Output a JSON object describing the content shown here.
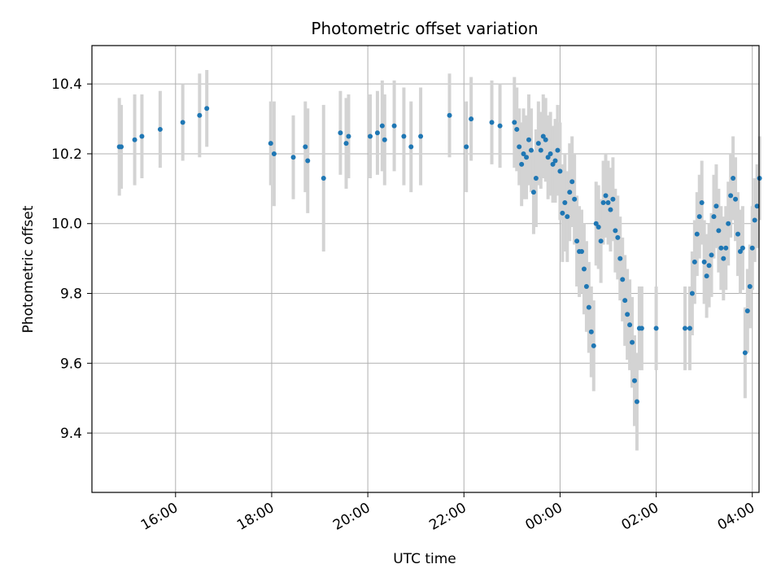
{
  "chart_data": {
    "type": "scatter",
    "title": "Photometric offset variation",
    "xlabel": "UTC time",
    "ylabel": "Photometric offset",
    "x_unit": "hours since 00:00 (negative = previous day)",
    "xlim": [
      -9.74,
      4.14
    ],
    "ylim": [
      9.23,
      10.51
    ],
    "x_ticks": [
      -8,
      -6,
      -4,
      -2,
      0,
      2,
      4
    ],
    "x_tick_labels": [
      "16:00",
      "18:00",
      "20:00",
      "22:00",
      "00:00",
      "02:00",
      "04:00"
    ],
    "y_ticks": [
      9.4,
      9.6,
      9.8,
      10.0,
      10.2,
      10.4
    ],
    "y_tick_labels": [
      "9.4",
      "9.6",
      "9.8",
      "10.0",
      "10.2",
      "10.4"
    ],
    "grid": true,
    "point_color": "#1f77b4",
    "errorbar_color": "#d3d3d3",
    "points": [
      [
        -9.17,
        10.22,
        0.14
      ],
      [
        -9.13,
        10.22,
        0.12
      ],
      [
        -8.85,
        10.24,
        0.13
      ],
      [
        -8.7,
        10.25,
        0.12
      ],
      [
        -8.32,
        10.27,
        0.11
      ],
      [
        -7.85,
        10.29,
        0.11
      ],
      [
        -7.5,
        10.31,
        0.12
      ],
      [
        -7.35,
        10.33,
        0.11
      ],
      [
        -6.02,
        10.23,
        0.12
      ],
      [
        -5.95,
        10.2,
        0.15
      ],
      [
        -5.55,
        10.19,
        0.12
      ],
      [
        -5.3,
        10.22,
        0.13
      ],
      [
        -5.25,
        10.18,
        0.15
      ],
      [
        -4.92,
        10.13,
        0.21
      ],
      [
        -4.57,
        10.26,
        0.12
      ],
      [
        -4.45,
        10.23,
        0.13
      ],
      [
        -4.4,
        10.25,
        0.12
      ],
      [
        -3.95,
        10.25,
        0.12
      ],
      [
        -3.8,
        10.26,
        0.12
      ],
      [
        -3.7,
        10.28,
        0.13
      ],
      [
        -3.65,
        10.24,
        0.13
      ],
      [
        -3.45,
        10.28,
        0.13
      ],
      [
        -3.25,
        10.25,
        0.14
      ],
      [
        -3.1,
        10.22,
        0.13
      ],
      [
        -2.9,
        10.25,
        0.14
      ],
      [
        -2.3,
        10.31,
        0.12
      ],
      [
        -1.95,
        10.22,
        0.13
      ],
      [
        -1.85,
        10.3,
        0.12
      ],
      [
        -1.42,
        10.29,
        0.12
      ],
      [
        -1.25,
        10.28,
        0.12
      ],
      [
        -0.95,
        10.29,
        0.13
      ],
      [
        -0.9,
        10.27,
        0.12
      ],
      [
        -0.85,
        10.22,
        0.11
      ],
      [
        -0.8,
        10.17,
        0.12
      ],
      [
        -0.76,
        10.2,
        0.13
      ],
      [
        -0.7,
        10.19,
        0.12
      ],
      [
        -0.65,
        10.24,
        0.13
      ],
      [
        -0.6,
        10.21,
        0.12
      ],
      [
        -0.55,
        10.09,
        0.12
      ],
      [
        -0.5,
        10.13,
        0.14
      ],
      [
        -0.45,
        10.23,
        0.12
      ],
      [
        -0.4,
        10.21,
        0.11
      ],
      [
        -0.35,
        10.25,
        0.12
      ],
      [
        -0.3,
        10.24,
        0.12
      ],
      [
        -0.25,
        10.19,
        0.12
      ],
      [
        -0.2,
        10.2,
        0.12
      ],
      [
        -0.15,
        10.17,
        0.11
      ],
      [
        -0.1,
        10.18,
        0.12
      ],
      [
        -0.05,
        10.21,
        0.13
      ],
      [
        0.0,
        10.15,
        0.14
      ],
      [
        0.05,
        10.03,
        0.14
      ],
      [
        0.1,
        10.06,
        0.14
      ],
      [
        0.15,
        10.02,
        0.13
      ],
      [
        0.2,
        10.09,
        0.14
      ],
      [
        0.25,
        10.12,
        0.13
      ],
      [
        0.3,
        10.07,
        0.13
      ],
      [
        0.35,
        9.95,
        0.13
      ],
      [
        0.4,
        9.92,
        0.13
      ],
      [
        0.45,
        9.92,
        0.12
      ],
      [
        0.5,
        9.87,
        0.13
      ],
      [
        0.55,
        9.82,
        0.13
      ],
      [
        0.6,
        9.76,
        0.13
      ],
      [
        0.65,
        9.69,
        0.13
      ],
      [
        0.7,
        9.65,
        0.13
      ],
      [
        0.75,
        10.0,
        0.12
      ],
      [
        0.8,
        9.99,
        0.12
      ],
      [
        0.85,
        9.95,
        0.12
      ],
      [
        0.9,
        10.06,
        0.12
      ],
      [
        0.95,
        10.08,
        0.12
      ],
      [
        1.0,
        10.06,
        0.12
      ],
      [
        1.05,
        10.04,
        0.12
      ],
      [
        1.1,
        10.07,
        0.12
      ],
      [
        1.15,
        9.98,
        0.12
      ],
      [
        1.2,
        9.96,
        0.12
      ],
      [
        1.25,
        9.9,
        0.12
      ],
      [
        1.3,
        9.84,
        0.12
      ],
      [
        1.35,
        9.78,
        0.13
      ],
      [
        1.4,
        9.74,
        0.13
      ],
      [
        1.45,
        9.71,
        0.13
      ],
      [
        1.5,
        9.66,
        0.13
      ],
      [
        1.55,
        9.55,
        0.13
      ],
      [
        1.6,
        9.49,
        0.14
      ],
      [
        1.65,
        9.7,
        0.12
      ],
      [
        1.7,
        9.7,
        0.12
      ],
      [
        2.0,
        9.7,
        0.12
      ],
      [
        2.6,
        9.7,
        0.12
      ],
      [
        2.7,
        9.7,
        0.12
      ],
      [
        2.75,
        9.8,
        0.12
      ],
      [
        2.8,
        9.89,
        0.12
      ],
      [
        2.85,
        9.97,
        0.12
      ],
      [
        2.9,
        10.02,
        0.12
      ],
      [
        2.95,
        10.06,
        0.12
      ],
      [
        3.0,
        9.89,
        0.12
      ],
      [
        3.05,
        9.85,
        0.12
      ],
      [
        3.1,
        9.88,
        0.12
      ],
      [
        3.15,
        9.91,
        0.12
      ],
      [
        3.2,
        10.02,
        0.12
      ],
      [
        3.25,
        10.05,
        0.12
      ],
      [
        3.3,
        9.98,
        0.12
      ],
      [
        3.35,
        9.93,
        0.12
      ],
      [
        3.4,
        9.9,
        0.12
      ],
      [
        3.45,
        9.93,
        0.12
      ],
      [
        3.5,
        10.0,
        0.12
      ],
      [
        3.55,
        10.08,
        0.12
      ],
      [
        3.6,
        10.13,
        0.12
      ],
      [
        3.65,
        10.07,
        0.12
      ],
      [
        3.7,
        9.97,
        0.12
      ],
      [
        3.75,
        9.92,
        0.12
      ],
      [
        3.8,
        9.93,
        0.12
      ],
      [
        3.85,
        9.63,
        0.13
      ],
      [
        3.9,
        9.75,
        0.12
      ],
      [
        3.95,
        9.82,
        0.12
      ],
      [
        4.0,
        9.93,
        0.12
      ],
      [
        4.05,
        10.01,
        0.12
      ],
      [
        4.1,
        10.05,
        0.12
      ],
      [
        4.15,
        10.13,
        0.12
      ]
    ]
  }
}
